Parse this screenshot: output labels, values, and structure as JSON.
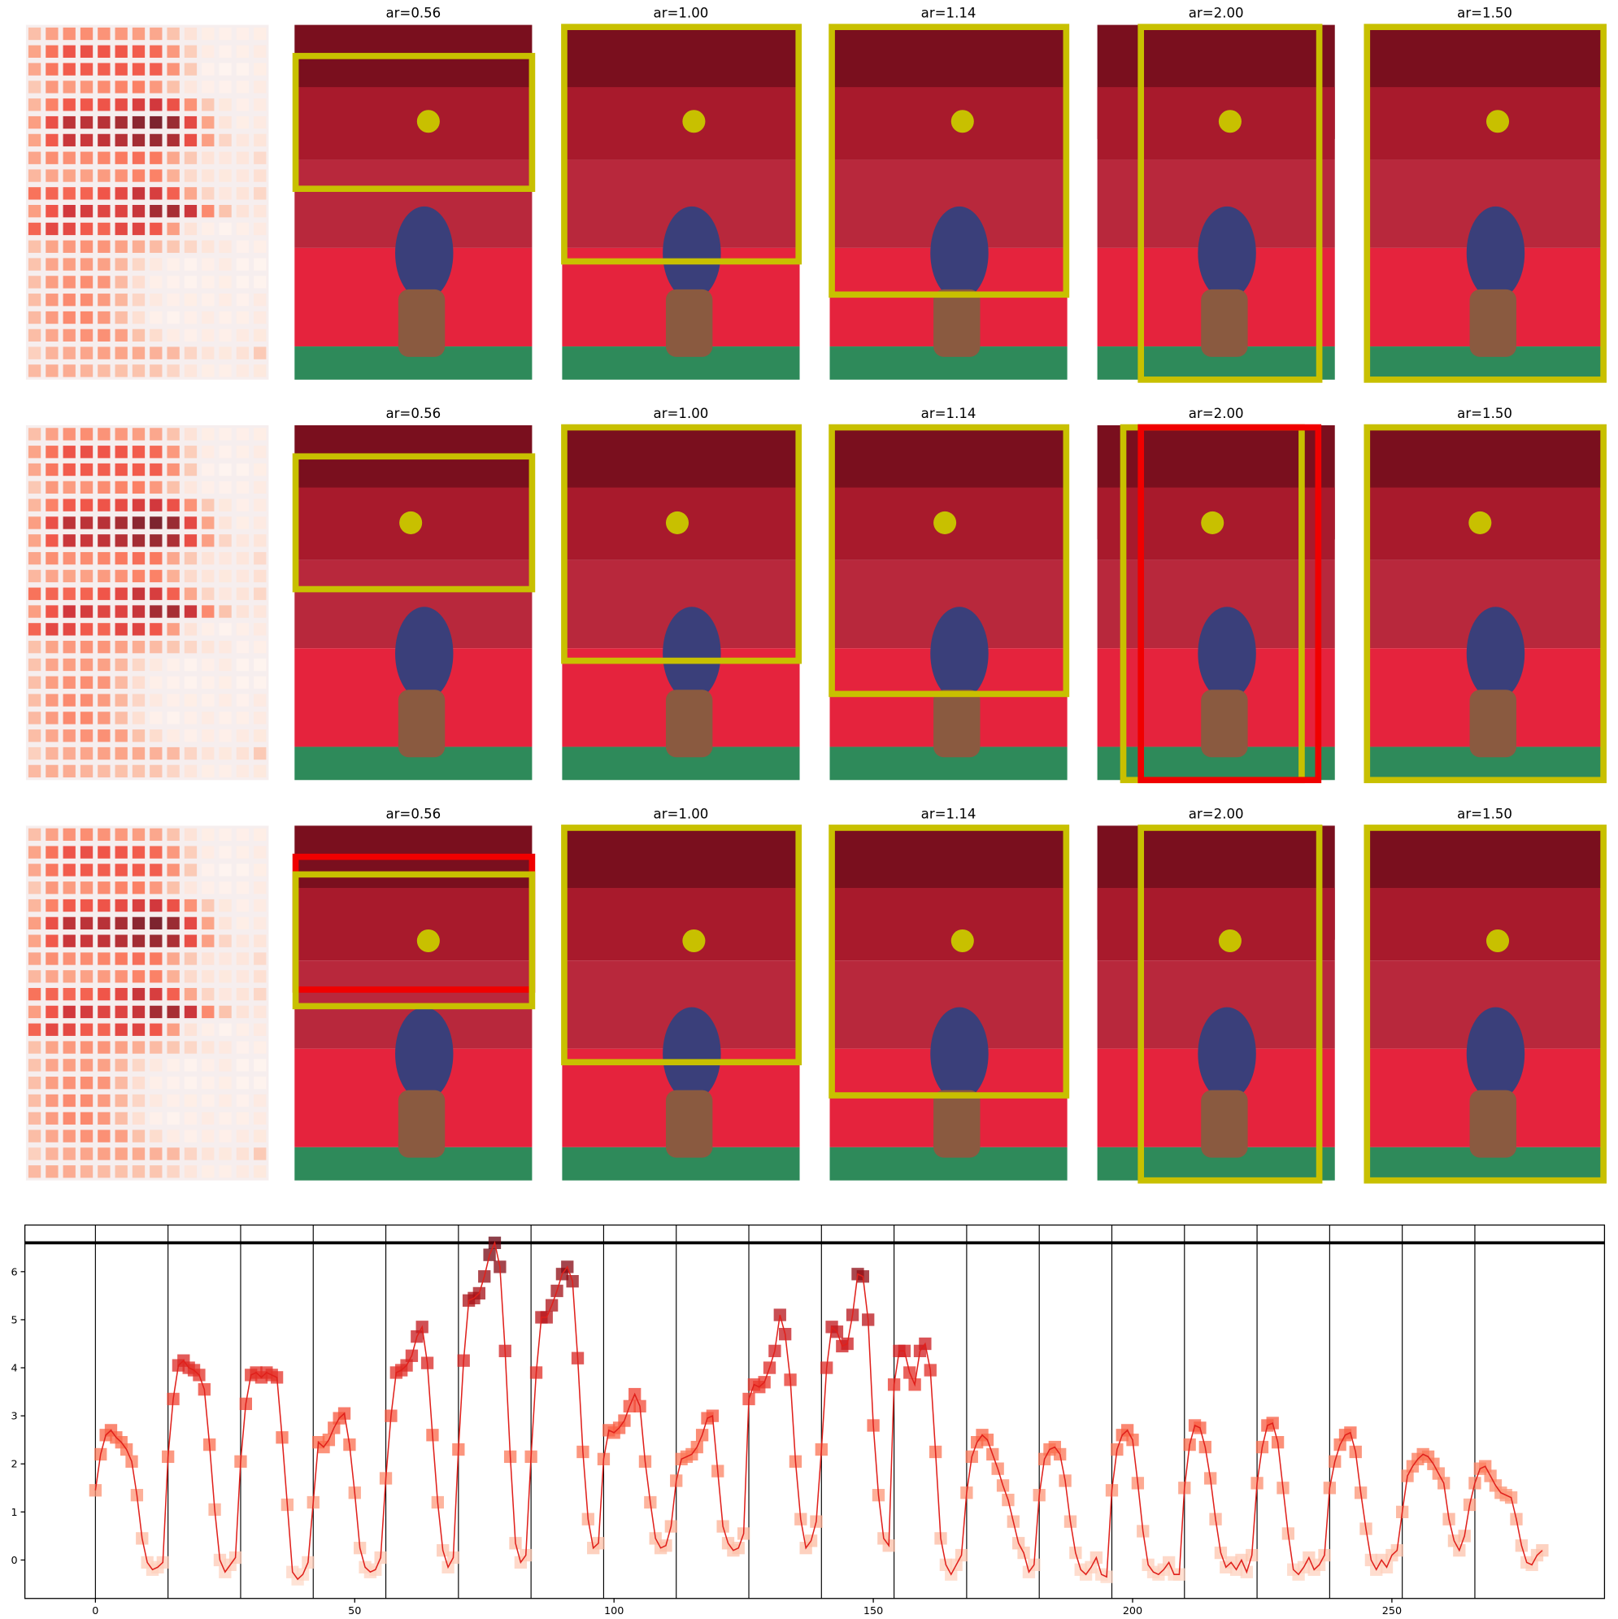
{
  "panel_rows": [
    {
      "titles": [
        "ar=0.56",
        "ar=1.00",
        "ar=1.14",
        "ar=2.00",
        "ar=1.50"
      ]
    },
    {
      "titles": [
        "ar=0.56",
        "ar=1.00",
        "ar=1.14",
        "ar=2.00",
        "ar=1.50"
      ]
    },
    {
      "titles": [
        "ar=0.56",
        "ar=1.00",
        "ar=1.14",
        "ar=2.00",
        "ar=1.50"
      ]
    }
  ],
  "chart_data": {
    "type": "line",
    "color": "#e0201b",
    "x": [
      0,
      1,
      2,
      3,
      4,
      5,
      6,
      7,
      8,
      9,
      10,
      11,
      12,
      13,
      14,
      15,
      16,
      17,
      18,
      19,
      20,
      21,
      22,
      23,
      24,
      25,
      26,
      27,
      28,
      29,
      30,
      31,
      32,
      33,
      34,
      35,
      36,
      37,
      38,
      39,
      40,
      41,
      42,
      43,
      44,
      45,
      46,
      47,
      48,
      49,
      50,
      51,
      52,
      53,
      54,
      55,
      56,
      57,
      58,
      59,
      60,
      61,
      62,
      63,
      64,
      65,
      66,
      67,
      68,
      69,
      70,
      71,
      72,
      73,
      74,
      75,
      76,
      77,
      78,
      79,
      80,
      81,
      82,
      83,
      84,
      85,
      86,
      87,
      88,
      89,
      90,
      91,
      92,
      93,
      94,
      95,
      96,
      97,
      98,
      99,
      100,
      101,
      102,
      103,
      104,
      105,
      106,
      107,
      108,
      109,
      110,
      111,
      112,
      113,
      114,
      115,
      116,
      117,
      118,
      119,
      120,
      121,
      122,
      123,
      124,
      125,
      126,
      127,
      128,
      129,
      130,
      131,
      132,
      133,
      134,
      135,
      136,
      137,
      138,
      139,
      140,
      141,
      142,
      143,
      144,
      145,
      146,
      147,
      148,
      149,
      150,
      151,
      152,
      153,
      154,
      155,
      156,
      157,
      158,
      159,
      160,
      161,
      162,
      163,
      164,
      165,
      166,
      167,
      168,
      169,
      170,
      171,
      172,
      173,
      174,
      175,
      176,
      177,
      178,
      179,
      180,
      181,
      182,
      183,
      184,
      185,
      186,
      187,
      188,
      189,
      190,
      191,
      192,
      193,
      194,
      195,
      196,
      197,
      198,
      199,
      200,
      201,
      202,
      203,
      204,
      205,
      206,
      207,
      208,
      209,
      210,
      211,
      212,
      213,
      214,
      215,
      216,
      217,
      218,
      219,
      220,
      221,
      222,
      223,
      224,
      225,
      226,
      227,
      228,
      229,
      230,
      231,
      232,
      233,
      234,
      235,
      236,
      237,
      238,
      239,
      240,
      241,
      242,
      243,
      244,
      245,
      246,
      247,
      248,
      249,
      250,
      251,
      252,
      253,
      254,
      255,
      256,
      257,
      258,
      259,
      260,
      261,
      262,
      263,
      264,
      265,
      266,
      267,
      268,
      269,
      270,
      271,
      272,
      273,
      274,
      275,
      276,
      277,
      278,
      279
    ],
    "values": [
      1.45,
      2.2,
      2.6,
      2.7,
      2.55,
      2.45,
      2.3,
      2.05,
      1.35,
      0.45,
      -0.05,
      -0.2,
      -0.15,
      -0.05,
      2.15,
      3.35,
      4.05,
      4.15,
      4.0,
      3.95,
      3.85,
      3.55,
      2.4,
      1.05,
      0.0,
      -0.25,
      -0.1,
      0.05,
      2.05,
      3.25,
      3.85,
      3.9,
      3.8,
      3.9,
      3.85,
      3.8,
      2.55,
      1.15,
      -0.25,
      -0.4,
      -0.3,
      -0.05,
      1.2,
      2.45,
      2.35,
      2.5,
      2.75,
      2.95,
      3.05,
      2.4,
      1.4,
      0.25,
      -0.15,
      -0.25,
      -0.2,
      0.05,
      1.7,
      3.0,
      3.9,
      3.95,
      4.05,
      4.25,
      4.65,
      4.85,
      4.1,
      2.6,
      1.2,
      0.2,
      -0.15,
      0.05,
      2.3,
      4.15,
      5.4,
      5.45,
      5.55,
      5.9,
      6.35,
      6.6,
      6.1,
      4.35,
      2.15,
      0.35,
      -0.05,
      0.1,
      2.15,
      3.9,
      5.05,
      5.05,
      5.3,
      5.6,
      5.95,
      6.1,
      5.8,
      4.2,
      2.25,
      0.85,
      0.25,
      0.35,
      2.1,
      2.7,
      2.65,
      2.75,
      2.9,
      3.2,
      3.45,
      3.2,
      2.05,
      1.2,
      0.45,
      0.25,
      0.3,
      0.7,
      1.65,
      2.1,
      2.15,
      2.2,
      2.35,
      2.6,
      2.95,
      3.0,
      1.85,
      0.7,
      0.35,
      0.2,
      0.25,
      0.55,
      3.35,
      3.65,
      3.6,
      3.7,
      4.0,
      4.35,
      5.1,
      4.7,
      3.75,
      2.05,
      0.85,
      0.25,
      0.4,
      0.8,
      2.3,
      4.0,
      4.85,
      4.75,
      4.45,
      4.5,
      5.1,
      5.95,
      5.9,
      5.0,
      2.8,
      1.35,
      0.45,
      0.3,
      3.65,
      4.35,
      4.35,
      3.9,
      3.65,
      4.35,
      4.5,
      3.95,
      2.25,
      0.45,
      -0.1,
      -0.3,
      -0.1,
      0.1,
      1.4,
      2.15,
      2.45,
      2.6,
      2.5,
      2.2,
      1.9,
      1.55,
      1.25,
      0.8,
      0.35,
      0.15,
      -0.25,
      -0.1,
      1.35,
      2.1,
      2.3,
      2.35,
      2.2,
      1.65,
      0.8,
      0.15,
      -0.2,
      -0.3,
      -0.15,
      0.05,
      -0.3,
      -0.35,
      1.45,
      2.3,
      2.6,
      2.7,
      2.5,
      1.6,
      0.6,
      -0.1,
      -0.25,
      -0.3,
      -0.2,
      -0.05,
      -0.3,
      -0.3,
      1.5,
      2.4,
      2.8,
      2.75,
      2.35,
      1.7,
      0.85,
      0.15,
      -0.15,
      -0.05,
      -0.2,
      0.0,
      -0.25,
      0.1,
      1.6,
      2.35,
      2.8,
      2.85,
      2.45,
      1.5,
      0.55,
      -0.2,
      -0.3,
      -0.15,
      0.05,
      -0.2,
      -0.1,
      0.1,
      1.5,
      2.05,
      2.4,
      2.6,
      2.65,
      2.25,
      1.4,
      0.65,
      0.0,
      -0.2,
      0.0,
      -0.15,
      0.1,
      0.2,
      1.0,
      1.75,
      1.95,
      2.1,
      2.2,
      2.15,
      2.0,
      1.8,
      1.6,
      0.85,
      0.4,
      0.2,
      0.5,
      1.15,
      1.6,
      1.9,
      1.95,
      1.75,
      1.55,
      1.4,
      1.35,
      1.3,
      0.85,
      0.3,
      -0.05,
      -0.1,
      0.1,
      0.2
    ],
    "xlim": [
      -13.6,
      291
    ],
    "ylim": [
      -0.8,
      6.97
    ],
    "xticks": [
      0,
      50,
      100,
      150,
      200,
      250
    ],
    "yticks": [
      0,
      1,
      2,
      3,
      4,
      5,
      6
    ],
    "vlines": [
      0,
      14,
      28,
      42,
      56,
      70,
      84,
      98,
      112,
      126,
      140,
      154,
      168,
      182,
      196,
      210,
      224,
      238,
      252,
      266
    ],
    "hlines": [
      6.6
    ]
  }
}
